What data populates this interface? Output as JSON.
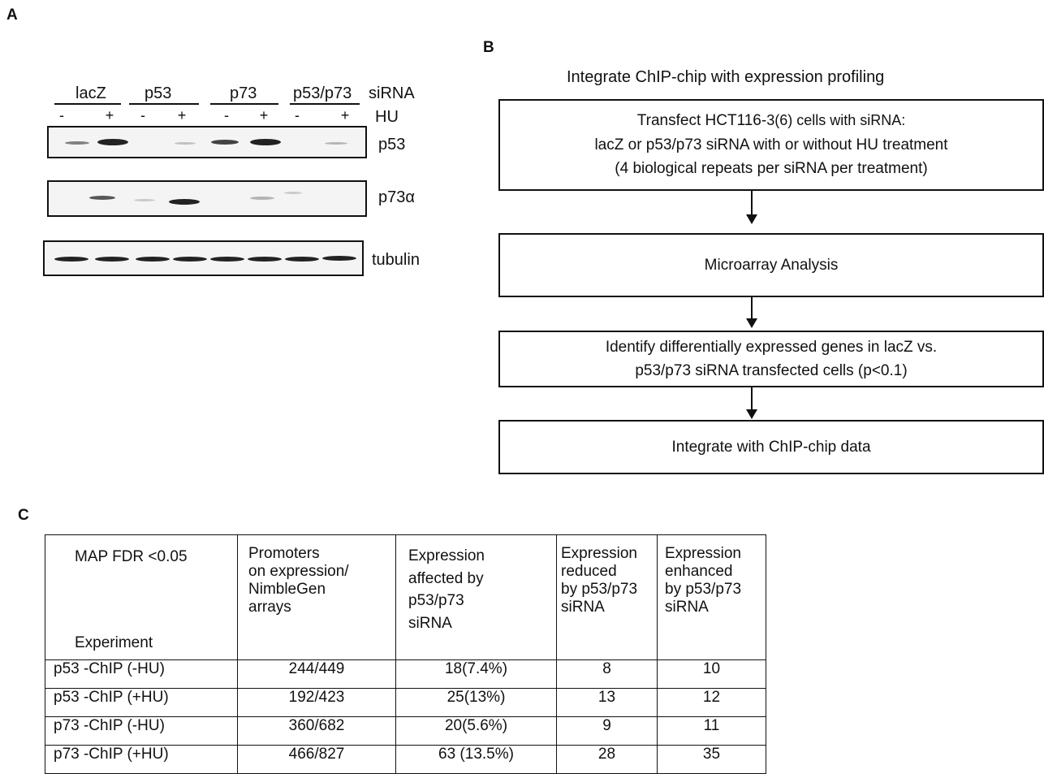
{
  "panel_labels": {
    "a": "A",
    "b": "B",
    "c": "C"
  },
  "panel_a": {
    "groups": [
      "lacZ",
      "p53",
      "p73",
      "p53/p73"
    ],
    "sirna_label": "siRNA",
    "hu_label": "HU",
    "hu_signs": [
      "-",
      "+",
      "-",
      "+",
      "-",
      "+",
      "-",
      "+"
    ],
    "blots": [
      {
        "label": "p53"
      },
      {
        "label": "p73α"
      },
      {
        "label": "tubulin"
      }
    ]
  },
  "panel_b": {
    "title": "Integrate ChIP-chip with expression profiling",
    "step1": {
      "line1": "Transfect HCT116-",
      "line1_suffix": "3(6) cells with siRNA:",
      "line2": "lacZ or p53/p73 siRNA with or without HU treatment",
      "line3": "(4 biological repeats per siRNA per treatment)"
    },
    "step2": "Microarray Analysis",
    "step3": {
      "line1": "Identify differentially expressed genes in lacZ vs.",
      "line2": "p53/p73 siRNA transfected cells (p<0.1)"
    },
    "step4": "Integrate with ChIP-chip data"
  },
  "panel_c": {
    "header": {
      "col0_top": "MAP FDR <0.05",
      "col0_bottom": "Experiment",
      "col1": [
        "Promoters",
        "on expression/",
        "NimbleGen",
        "arrays"
      ],
      "col2": [
        "Expression",
        "affected by",
        "p53/p73",
        "siRNA"
      ],
      "col3": [
        "Expression",
        "reduced",
        "by p53/p73",
        "siRNA"
      ],
      "col4": [
        "Expression",
        "enhanced",
        "by p53/p73",
        "siRNA"
      ]
    },
    "rows": [
      {
        "experiment": "p53 -ChIP (-HU)",
        "promoters": "244/449",
        "affected": "18(7.4%)",
        "reduced": "8",
        "enhanced": "10"
      },
      {
        "experiment": "p53 -ChIP (+HU)",
        "promoters": "192/423",
        "affected": "25(13%)",
        "reduced": "13",
        "enhanced": "12"
      },
      {
        "experiment": "p73 -ChIP (-HU)",
        "promoters": "360/682",
        "affected": "20(5.6%)",
        "reduced": "9",
        "enhanced": "11"
      },
      {
        "experiment": "p73 -ChIP (+HU)",
        "promoters": "466/827",
        "affected": "63 (13.5%)",
        "reduced": "28",
        "enhanced": "35"
      }
    ]
  }
}
